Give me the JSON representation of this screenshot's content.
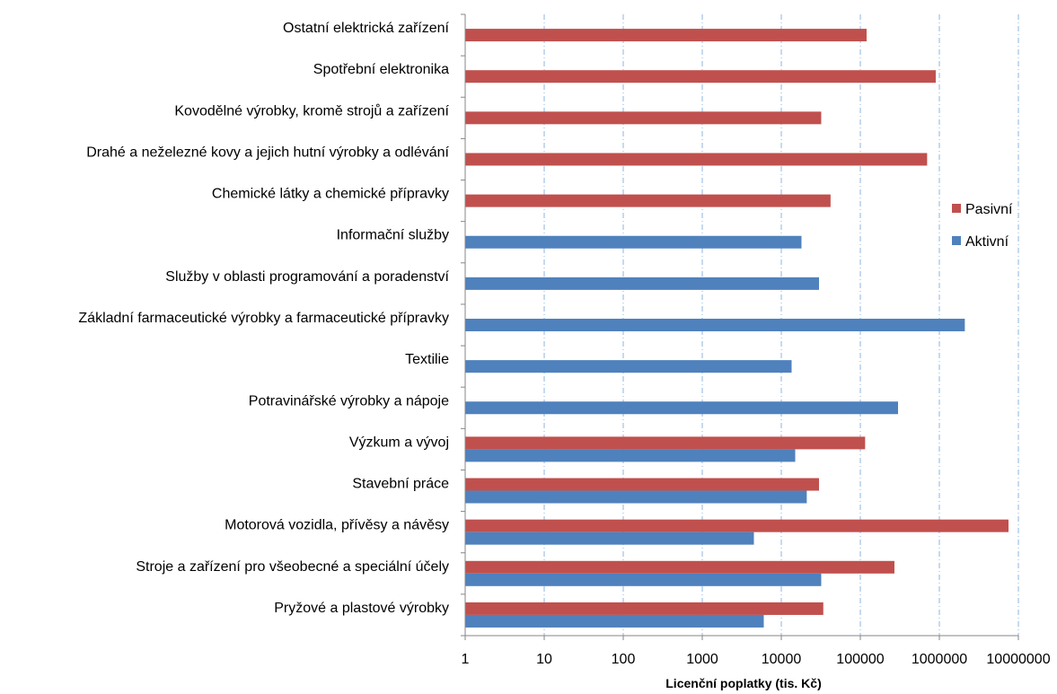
{
  "chart_data": {
    "type": "bar",
    "orientation": "horizontal",
    "categories": [
      "Ostatní elektrická zařízení",
      "Spotřební elektronika",
      "Kovodělné výrobky, kromě strojů a zařízení",
      "Drahé a neželezné kovy a jejich hutní výrobky a odlévání",
      "Chemické látky a chemické přípravky",
      "Informační služby",
      "Služby v oblasti programování a poradenství",
      "Základní farmaceutické výrobky a farmaceutické přípravky",
      "Textilie",
      "Potravinářské výrobky a nápoje",
      "Výzkum a vývoj",
      "Stavební práce",
      "Motorová vozidla, přívěsy a návěsy",
      "Stroje a zařízení pro všeobecné a speciální účely",
      "Pryžové a plastové výrobky"
    ],
    "series": [
      {
        "name": "Pasivní",
        "color": "#C0504D",
        "values": [
          120000,
          900000,
          32000,
          700000,
          42000,
          null,
          null,
          null,
          null,
          null,
          115000,
          30000,
          7500000,
          270000,
          34000
        ]
      },
      {
        "name": "Aktivní",
        "color": "#4F81BD",
        "values": [
          null,
          null,
          null,
          null,
          null,
          18000,
          30000,
          2100000,
          13500,
          300000,
          15000,
          21000,
          4500,
          32000,
          6000
        ]
      }
    ],
    "xscale": "log",
    "xlim": [
      1,
      10000000
    ],
    "xticks": [
      "1",
      "10",
      "100",
      "1000",
      "10000",
      "100000",
      "1000000",
      "10000000"
    ],
    "xlabel": "Licenční poplatky (tis. Kč)",
    "ylabel": "",
    "title": "",
    "grid": "vertical dash-dot",
    "legend_position": "right",
    "legend_order": [
      "Pasivní",
      "Aktivní"
    ]
  }
}
